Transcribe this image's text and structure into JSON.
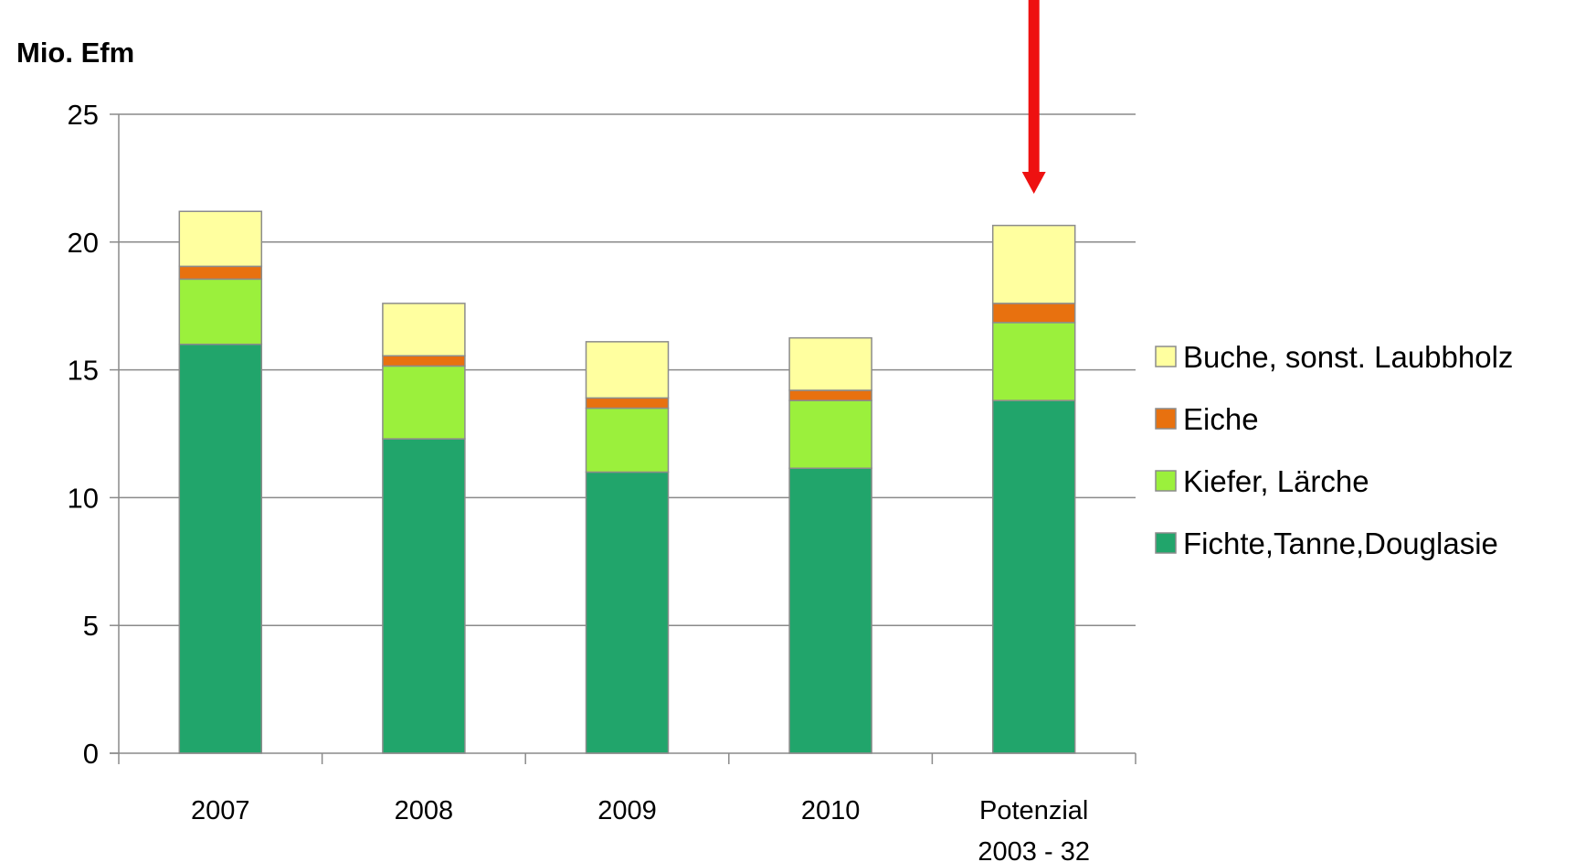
{
  "chart_data": {
    "type": "bar",
    "stacked": true,
    "ylabel": "Mio. Efm",
    "ylim": [
      0,
      25
    ],
    "yticks": [
      0,
      5,
      10,
      15,
      20,
      25
    ],
    "grid": true,
    "legend_position": "right",
    "categories": [
      [
        "2007"
      ],
      [
        "2008"
      ],
      [
        "2009"
      ],
      [
        "2010"
      ],
      [
        "Potenzial",
        "2003 - 32"
      ]
    ],
    "series": [
      {
        "name": "Fichte,Tanne,Douglasie",
        "color": "#21a56b",
        "values": [
          16.0,
          12.3,
          11.0,
          11.15,
          13.8
        ]
      },
      {
        "name": "Kiefer, Lärche",
        "color": "#9bf03c",
        "values": [
          2.55,
          2.85,
          2.5,
          2.65,
          3.05
        ]
      },
      {
        "name": "Eiche",
        "color": "#e8710f",
        "values": [
          0.5,
          0.4,
          0.4,
          0.4,
          0.75
        ]
      },
      {
        "name": "Buche, sonst. Laubbholz",
        "color": "#ffff9f",
        "values": [
          2.15,
          2.05,
          2.2,
          2.05,
          3.05
        ]
      }
    ],
    "legend_order": [
      3,
      2,
      1,
      0
    ],
    "annotation": {
      "type": "arrow",
      "color": "#ee1111",
      "target_category_index": 4
    }
  }
}
